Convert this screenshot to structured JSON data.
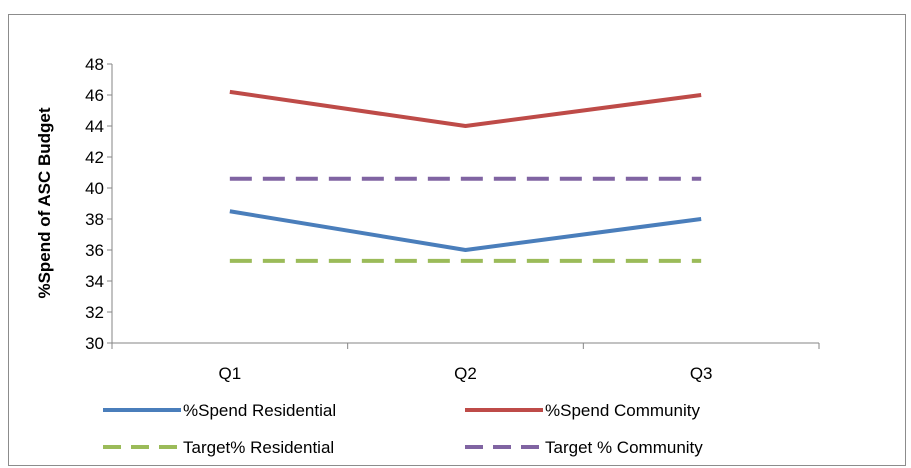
{
  "chart_data": {
    "type": "line",
    "categories": [
      "Q1",
      "Q2",
      "Q3"
    ],
    "ylabel": "%Spend of ASC Budget",
    "xlabel": "",
    "ylim": [
      30,
      48
    ],
    "ytick_step": 2,
    "grid": false,
    "legend_position": "bottom",
    "series": [
      {
        "name": "%Spend Residential",
        "values": [
          38.5,
          36.0,
          38.0
        ],
        "color": "#4a7ebb",
        "style": "solid"
      },
      {
        "name": "%Spend Community",
        "values": [
          46.2,
          44.0,
          46.0
        ],
        "color": "#be4b48",
        "style": "solid"
      },
      {
        "name": "Target% Residential",
        "values": [
          35.3,
          35.3,
          35.3
        ],
        "color": "#9bbb59",
        "style": "dashed"
      },
      {
        "name": "Target % Community",
        "values": [
          40.6,
          40.6,
          40.6
        ],
        "color": "#8064a2",
        "style": "dashed"
      }
    ]
  }
}
